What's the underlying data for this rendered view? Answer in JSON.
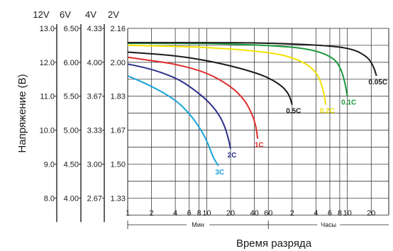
{
  "chart_data": {
    "type": "line",
    "xlabel": "Время разряда",
    "ylabel": "Напряжение (В)",
    "x_scale": "log",
    "x_ticks": [
      {
        "label": "1",
        "t": 1
      },
      {
        "label": "2",
        "t": 2
      },
      {
        "label": "4",
        "t": 4
      },
      {
        "label": "6",
        "t": 6
      },
      {
        "label": "8",
        "t": 8
      },
      {
        "label": "10",
        "t": 10
      },
      {
        "label": "20",
        "t": 20
      },
      {
        "label": "40",
        "t": 40
      },
      {
        "label": "60",
        "t": 60
      },
      {
        "label": "2",
        "t": 120
      },
      {
        "label": "4",
        "t": 240
      },
      {
        "label": "6",
        "t": 360
      },
      {
        "label": "8",
        "t": 480
      },
      {
        "label": "10",
        "t": 600
      },
      {
        "label": "20",
        "t": 1200
      }
    ],
    "x_ranges": [
      {
        "label": "Мин",
        "from": 1,
        "to": 60
      },
      {
        "label": "Часы",
        "from": 60,
        "to": 2000
      }
    ],
    "xlim": [
      1,
      2000
    ],
    "ylim": [
      8.0,
      13.0
    ],
    "grid": true,
    "y_axes": [
      {
        "header": "12V",
        "ticks": [
          "13.0",
          "12.0",
          "11.0",
          "10.0",
          "9.0",
          "8.0"
        ]
      },
      {
        "header": "6V",
        "ticks": [
          "6.50",
          "6.00",
          "5.50",
          "5.00",
          "4.50",
          "4.00"
        ]
      },
      {
        "header": "4V",
        "ticks": [
          "4.33",
          "4.00",
          "3.67",
          "3.33",
          "3.00",
          "2.67"
        ]
      },
      {
        "header": "2V",
        "ticks": [
          "2.16",
          "2.00",
          "1.83",
          "1.67",
          "1.50",
          "1.33"
        ]
      }
    ],
    "y_tick_values": [
      13.0,
      12.0,
      11.0,
      10.0,
      9.0,
      8.0
    ],
    "series": [
      {
        "name": "3C",
        "color": "#1aa3d9",
        "points": [
          [
            1,
            11.6
          ],
          [
            2,
            11.3
          ],
          [
            4,
            10.9
          ],
          [
            6,
            10.5
          ],
          [
            8,
            10.1
          ],
          [
            10,
            9.7
          ],
          [
            12,
            9.2
          ],
          [
            14,
            8.95
          ]
        ]
      },
      {
        "name": "2C",
        "color": "#2b2f8a",
        "points": [
          [
            1,
            11.95
          ],
          [
            2,
            11.8
          ],
          [
            4,
            11.55
          ],
          [
            6,
            11.3
          ],
          [
            10,
            10.9
          ],
          [
            14,
            10.5
          ],
          [
            17,
            10.1
          ],
          [
            19,
            9.7
          ],
          [
            20,
            9.45
          ]
        ]
      },
      {
        "name": "1C",
        "color": "#e02c2c",
        "points": [
          [
            1,
            12.15
          ],
          [
            2,
            12.05
          ],
          [
            4,
            11.95
          ],
          [
            10,
            11.7
          ],
          [
            20,
            11.3
          ],
          [
            30,
            10.9
          ],
          [
            38,
            10.45
          ],
          [
            42,
            10.1
          ],
          [
            44,
            9.75
          ]
        ]
      },
      {
        "name": "0.5C",
        "color": "#1a1a1a",
        "points": [
          [
            1,
            12.3
          ],
          [
            4,
            12.2
          ],
          [
            10,
            12.05
          ],
          [
            20,
            11.9
          ],
          [
            40,
            11.7
          ],
          [
            60,
            11.55
          ],
          [
            90,
            11.3
          ],
          [
            110,
            11.05
          ],
          [
            120,
            10.75
          ]
        ]
      },
      {
        "name": "0.2C",
        "color": "#f2e200",
        "points": [
          [
            1,
            12.5
          ],
          [
            10,
            12.45
          ],
          [
            60,
            12.3
          ],
          [
            120,
            12.15
          ],
          [
            200,
            11.9
          ],
          [
            260,
            11.6
          ],
          [
            300,
            11.15
          ],
          [
            320,
            10.75
          ]
        ]
      },
      {
        "name": "0.1C",
        "color": "#1a9a3c",
        "points": [
          [
            1,
            12.56
          ],
          [
            10,
            12.56
          ],
          [
            60,
            12.5
          ],
          [
            200,
            12.4
          ],
          [
            400,
            12.15
          ],
          [
            500,
            11.8
          ],
          [
            560,
            11.4
          ],
          [
            600,
            11.0
          ]
        ]
      },
      {
        "name": "0.05C",
        "color": "#1a1a1a",
        "points": [
          [
            1,
            12.58
          ],
          [
            10,
            12.58
          ],
          [
            60,
            12.57
          ],
          [
            300,
            12.5
          ],
          [
            700,
            12.4
          ],
          [
            1100,
            12.15
          ],
          [
            1300,
            11.85
          ],
          [
            1400,
            11.6
          ]
        ]
      }
    ]
  }
}
